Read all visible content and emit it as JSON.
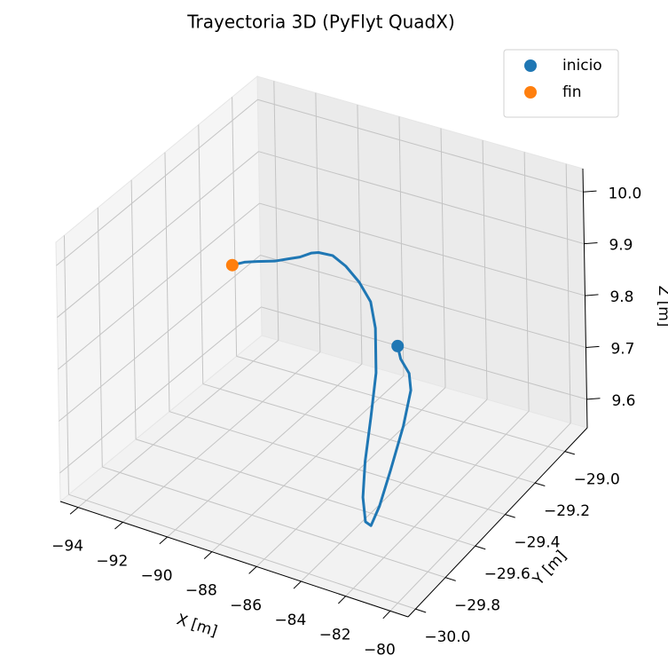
{
  "chart_data": {
    "type": "line3d",
    "title": "Trayectoria 3D (PyFlyt QuadX)",
    "xlabel": "X [m]",
    "ylabel": "Y [m]",
    "zlabel": "Z [m]",
    "xlim": [
      -94.8,
      -79.2
    ],
    "ylim": [
      -30.05,
      -28.85
    ],
    "zlim": [
      9.545,
      10.045
    ],
    "xticks": [
      {
        "value": -94,
        "label": "−94"
      },
      {
        "value": -92,
        "label": "−92"
      },
      {
        "value": -90,
        "label": "−90"
      },
      {
        "value": -88,
        "label": "−88"
      },
      {
        "value": -86,
        "label": "−86"
      },
      {
        "value": -84,
        "label": "−84"
      },
      {
        "value": -82,
        "label": "−82"
      },
      {
        "value": -80,
        "label": "−80"
      }
    ],
    "yticks": [
      {
        "value": -30.0,
        "label": "−30.0"
      },
      {
        "value": -29.8,
        "label": "−29.8"
      },
      {
        "value": -29.6,
        "label": "−29.6"
      },
      {
        "value": -29.4,
        "label": "−29.4"
      },
      {
        "value": -29.2,
        "label": "−29.2"
      },
      {
        "value": -29.0,
        "label": "−29.0"
      }
    ],
    "zticks": [
      9.6,
      9.7,
      9.8,
      9.9,
      {
        "value": 10.0,
        "label": "10.0"
      }
    ],
    "grid": true,
    "legend": "upper right",
    "series": [
      {
        "kind": "line",
        "color": "#1f77b4",
        "x": [
          -83.72,
          -83.15,
          -82.48,
          -82.27,
          -82.21,
          -82.41,
          -82.51,
          -82.49,
          -82.74,
          -82.98,
          -83.21,
          -83.27,
          -83.43,
          -83.86,
          -84.5,
          -85.46,
          -86.52,
          -87.58,
          -88.39,
          -88.89,
          -89.5,
          -90.12,
          -90.84,
          -91.77,
          -92.51,
          -93.24
        ],
        "y": [
          -29.45,
          -29.51,
          -29.55,
          -29.57,
          -29.63,
          -29.69,
          -29.75,
          -29.81,
          -29.81,
          -29.79,
          -29.74,
          -29.69,
          -29.63,
          -29.57,
          -29.51,
          -29.45,
          -29.39,
          -29.33,
          -29.31,
          -29.29,
          -29.28,
          -29.27,
          -29.26,
          -29.25,
          -29.23,
          -29.21
        ],
        "z": [
          9.827,
          9.827,
          9.82,
          9.796,
          9.746,
          9.675,
          9.623,
          9.603,
          9.607,
          9.645,
          9.696,
          9.766,
          9.832,
          9.895,
          9.92,
          9.928,
          9.928,
          9.918,
          9.908,
          9.895,
          9.877,
          9.863,
          9.847,
          9.832,
          9.816,
          9.796
        ]
      },
      {
        "kind": "scatter",
        "name": "inicio",
        "color": "#1f77b4",
        "x": [
          -83.72
        ],
        "y": [
          -29.45
        ],
        "z": [
          9.827
        ]
      },
      {
        "kind": "scatter",
        "name": "fin",
        "color": "#ff7f0e",
        "x": [
          -93.24
        ],
        "y": [
          -29.21
        ],
        "z": [
          9.796
        ]
      }
    ]
  }
}
